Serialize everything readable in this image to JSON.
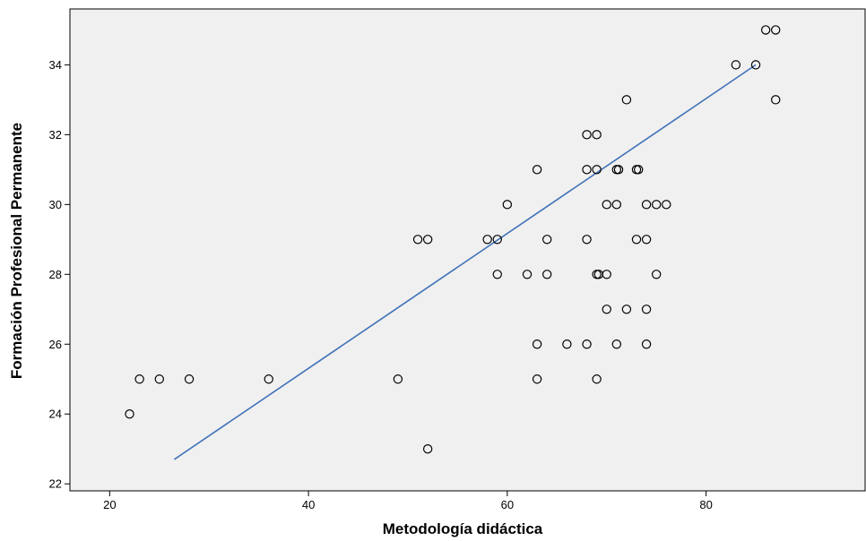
{
  "chart_data": {
    "type": "scatter",
    "xlabel": "Metodología didáctica",
    "ylabel": "Formación Profesional Permanente",
    "xlim": [
      16,
      96
    ],
    "ylim": [
      21.8,
      35.6
    ],
    "xticks": [
      20,
      40,
      60,
      80
    ],
    "yticks": [
      22,
      24,
      26,
      28,
      30,
      32,
      34
    ],
    "grid": false,
    "legend": "none",
    "colors": {
      "plot_background": "#f0f0f0",
      "marker_stroke": "#000000",
      "fit_line": "#3f72b8"
    },
    "fit_line": {
      "x": [
        26.5,
        85
      ],
      "y": [
        22.7,
        34
      ]
    },
    "points": [
      {
        "x": 22,
        "y": 24
      },
      {
        "x": 23,
        "y": 25
      },
      {
        "x": 25,
        "y": 25
      },
      {
        "x": 28,
        "y": 25
      },
      {
        "x": 36,
        "y": 25
      },
      {
        "x": 49,
        "y": 25
      },
      {
        "x": 51,
        "y": 29
      },
      {
        "x": 52,
        "y": 29
      },
      {
        "x": 52,
        "y": 23
      },
      {
        "x": 58,
        "y": 29
      },
      {
        "x": 59,
        "y": 29
      },
      {
        "x": 59,
        "y": 28
      },
      {
        "x": 60,
        "y": 30
      },
      {
        "x": 62,
        "y": 28
      },
      {
        "x": 63,
        "y": 31
      },
      {
        "x": 63,
        "y": 26
      },
      {
        "x": 63,
        "y": 25
      },
      {
        "x": 64,
        "y": 29
      },
      {
        "x": 64,
        "y": 28
      },
      {
        "x": 66,
        "y": 26
      },
      {
        "x": 68,
        "y": 32
      },
      {
        "x": 68,
        "y": 31
      },
      {
        "x": 68,
        "y": 29
      },
      {
        "x": 68,
        "y": 26
      },
      {
        "x": 69,
        "y": 32
      },
      {
        "x": 69,
        "y": 31
      },
      {
        "x": 69,
        "y": 28
      },
      {
        "x": 69.2,
        "y": 28
      },
      {
        "x": 69,
        "y": 25
      },
      {
        "x": 70,
        "y": 30
      },
      {
        "x": 70,
        "y": 28
      },
      {
        "x": 70,
        "y": 27
      },
      {
        "x": 71,
        "y": 31
      },
      {
        "x": 71.2,
        "y": 31
      },
      {
        "x": 71,
        "y": 30
      },
      {
        "x": 71,
        "y": 26
      },
      {
        "x": 72,
        "y": 33
      },
      {
        "x": 72,
        "y": 27
      },
      {
        "x": 73,
        "y": 31
      },
      {
        "x": 73.2,
        "y": 31
      },
      {
        "x": 73,
        "y": 29
      },
      {
        "x": 74,
        "y": 30
      },
      {
        "x": 74,
        "y": 29
      },
      {
        "x": 74,
        "y": 27
      },
      {
        "x": 74,
        "y": 26
      },
      {
        "x": 75,
        "y": 30
      },
      {
        "x": 75,
        "y": 28
      },
      {
        "x": 76,
        "y": 30
      },
      {
        "x": 83,
        "y": 34
      },
      {
        "x": 85,
        "y": 34
      },
      {
        "x": 86,
        "y": 35
      },
      {
        "x": 87,
        "y": 35
      },
      {
        "x": 87,
        "y": 33
      }
    ]
  }
}
